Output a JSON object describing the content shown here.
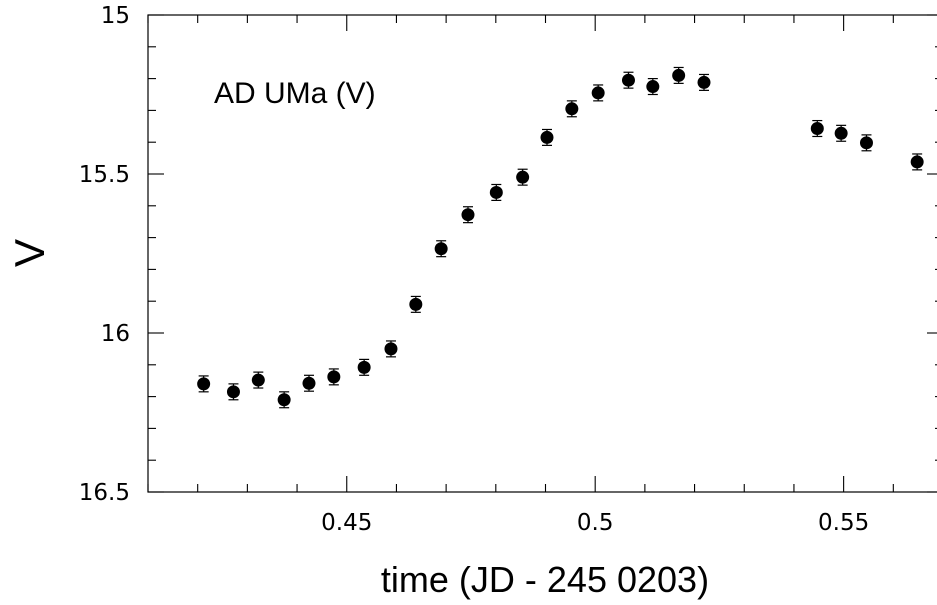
{
  "chart_data": {
    "type": "scatter",
    "title": "",
    "annotation": "AD UMa (V)",
    "xlabel": "time (JD - 245 0203)",
    "ylabel": "V",
    "xlim": [
      0.41,
      0.57
    ],
    "ylim": [
      16.5,
      15
    ],
    "y_inverted": true,
    "grid": false,
    "x_ticks": [
      0.45,
      0.5,
      0.55
    ],
    "x_tick_labels": [
      "0.45",
      "0.5",
      "0.55"
    ],
    "x_minor_step": 0.01,
    "y_ticks": [
      15,
      15.5,
      16,
      16.5
    ],
    "y_tick_labels": [
      "15",
      "15.5",
      "16",
      "16.5"
    ],
    "y_minor_step": 0.1,
    "points": [
      {
        "x": 0.4212,
        "y": 16.16,
        "err": 0.025
      },
      {
        "x": 0.4272,
        "y": 16.185,
        "err": 0.025
      },
      {
        "x": 0.4322,
        "y": 16.148,
        "err": 0.025
      },
      {
        "x": 0.4374,
        "y": 16.21,
        "err": 0.025
      },
      {
        "x": 0.4424,
        "y": 16.158,
        "err": 0.025
      },
      {
        "x": 0.4474,
        "y": 16.138,
        "err": 0.025
      },
      {
        "x": 0.4535,
        "y": 16.108,
        "err": 0.025
      },
      {
        "x": 0.4589,
        "y": 16.05,
        "err": 0.025
      },
      {
        "x": 0.4639,
        "y": 15.91,
        "err": 0.025
      },
      {
        "x": 0.469,
        "y": 15.735,
        "err": 0.025
      },
      {
        "x": 0.4744,
        "y": 15.628,
        "err": 0.025
      },
      {
        "x": 0.4801,
        "y": 15.558,
        "err": 0.025
      },
      {
        "x": 0.4854,
        "y": 15.51,
        "err": 0.025
      },
      {
        "x": 0.4903,
        "y": 15.385,
        "err": 0.025
      },
      {
        "x": 0.4953,
        "y": 15.295,
        "err": 0.025
      },
      {
        "x": 0.5006,
        "y": 15.245,
        "err": 0.025
      },
      {
        "x": 0.5067,
        "y": 15.205,
        "err": 0.025
      },
      {
        "x": 0.5116,
        "y": 15.225,
        "err": 0.025
      },
      {
        "x": 0.5168,
        "y": 15.19,
        "err": 0.025
      },
      {
        "x": 0.5219,
        "y": 15.212,
        "err": 0.025
      },
      {
        "x": 0.5447,
        "y": 15.357,
        "err": 0.025
      },
      {
        "x": 0.5495,
        "y": 15.372,
        "err": 0.025
      },
      {
        "x": 0.5546,
        "y": 15.402,
        "err": 0.025
      },
      {
        "x": 0.5648,
        "y": 15.462,
        "err": 0.025
      }
    ]
  }
}
